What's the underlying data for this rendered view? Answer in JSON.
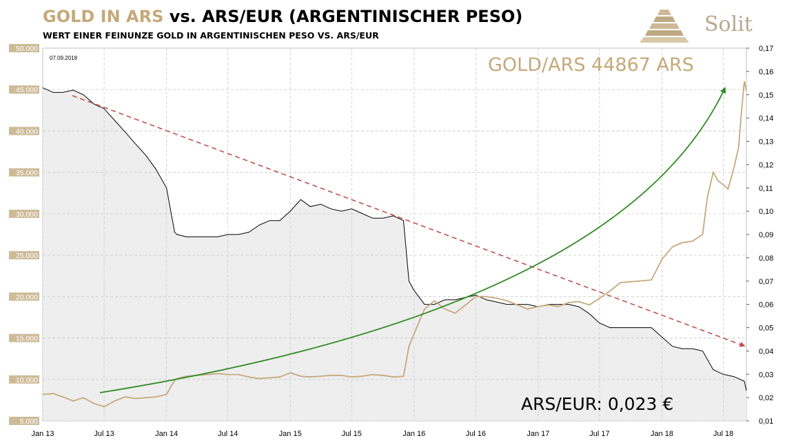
{
  "header": {
    "title_part1": "GOLD IN ARS",
    "title_part2": " vs. ARS/EUR (ARGENTINISCHER PESO)",
    "subtitle": "WERT EINER FEINUNZE GOLD IN ARGENTINISCHEN PESO VS. ARS/EUR",
    "brand": "Solit"
  },
  "colors": {
    "gold": "#c4a97a",
    "gold_axis": "#b49a6a",
    "ars_eur_line": "#000000",
    "ars_eur_fill": "#eeeeee",
    "trend_down": "#c0504d",
    "trend_up": "#2e8b20",
    "grid": "#c8c8c8"
  },
  "chart_data": {
    "type": "line",
    "date_label": "07.09.2018",
    "x_ticks": [
      "Jan 13",
      "Jul 13",
      "Jan 14",
      "Jul 14",
      "Jan 15",
      "Jul 15",
      "Jan 16",
      "Jul 16",
      "Jan 17",
      "Jul 17",
      "Jan 18",
      "Jul 18"
    ],
    "x_tick_dates": [
      "2013-01-01",
      "2013-07-01",
      "2014-01-01",
      "2014-07-01",
      "2015-01-01",
      "2015-07-01",
      "2016-01-01",
      "2016-07-01",
      "2017-01-01",
      "2017-07-01",
      "2018-01-01",
      "2018-07-01"
    ],
    "x_range": [
      "2013-01-01",
      "2018-09-07"
    ],
    "y_left": {
      "label": "Gold in ARS",
      "min": 5000,
      "max": 50000,
      "ticks": [
        "50.000",
        "45.000",
        "40.000",
        "35.000",
        "30.000",
        "25.000",
        "20.000",
        "15.000",
        "10.000",
        "5.000"
      ],
      "tick_values": [
        50000,
        45000,
        40000,
        35000,
        30000,
        25000,
        20000,
        15000,
        10000,
        5000
      ]
    },
    "y_right": {
      "label": "ARS/EUR",
      "min": 0.01,
      "max": 0.17,
      "ticks": [
        "0,17",
        "0,16",
        "0,15",
        "0,14",
        "0,13",
        "0,12",
        "0,11",
        "0,10",
        "0,09",
        "0,08",
        "0,07",
        "0,06",
        "0,05",
        "0,04",
        "0,03",
        "0,02",
        "0,01"
      ],
      "tick_values": [
        0.17,
        0.16,
        0.15,
        0.14,
        0.13,
        0.12,
        0.11,
        0.1,
        0.09,
        0.08,
        0.07,
        0.06,
        0.05,
        0.04,
        0.03,
        0.02,
        0.01
      ]
    },
    "grid": true,
    "series": [
      {
        "name": "GOLD/ARS",
        "axis": "left",
        "color": "#c4a97a",
        "points": [
          [
            "2013-01-01",
            8200
          ],
          [
            "2013-02-01",
            8300
          ],
          [
            "2013-03-01",
            7900
          ],
          [
            "2013-04-01",
            7400
          ],
          [
            "2013-05-01",
            7800
          ],
          [
            "2013-06-01",
            7100
          ],
          [
            "2013-07-01",
            6700
          ],
          [
            "2013-08-01",
            7400
          ],
          [
            "2013-09-01",
            7900
          ],
          [
            "2013-10-01",
            7700
          ],
          [
            "2013-11-01",
            7800
          ],
          [
            "2013-12-01",
            7900
          ],
          [
            "2014-01-01",
            8200
          ],
          [
            "2014-01-25",
            9900
          ],
          [
            "2014-02-01",
            10100
          ],
          [
            "2014-03-01",
            10400
          ],
          [
            "2014-04-01",
            10500
          ],
          [
            "2014-05-01",
            10600
          ],
          [
            "2014-06-01",
            10700
          ],
          [
            "2014-07-01",
            10600
          ],
          [
            "2014-08-01",
            10600
          ],
          [
            "2014-09-01",
            10300
          ],
          [
            "2014-10-01",
            10100
          ],
          [
            "2014-11-01",
            10200
          ],
          [
            "2014-12-01",
            10300
          ],
          [
            "2015-01-01",
            10800
          ],
          [
            "2015-02-01",
            10400
          ],
          [
            "2015-03-01",
            10300
          ],
          [
            "2015-04-01",
            10400
          ],
          [
            "2015-05-01",
            10500
          ],
          [
            "2015-06-01",
            10500
          ],
          [
            "2015-07-01",
            10300
          ],
          [
            "2015-08-01",
            10400
          ],
          [
            "2015-09-01",
            10600
          ],
          [
            "2015-10-01",
            10500
          ],
          [
            "2015-11-01",
            10300
          ],
          [
            "2015-12-01",
            10400
          ],
          [
            "2015-12-17",
            14000
          ],
          [
            "2016-01-01",
            15500
          ],
          [
            "2016-02-01",
            18500
          ],
          [
            "2016-03-01",
            19500
          ],
          [
            "2016-04-01",
            18500
          ],
          [
            "2016-05-01",
            18000
          ],
          [
            "2016-06-01",
            19000
          ],
          [
            "2016-07-01",
            20000
          ],
          [
            "2016-08-01",
            20000
          ],
          [
            "2016-09-01",
            19800
          ],
          [
            "2016-10-01",
            19500
          ],
          [
            "2016-11-01",
            19000
          ],
          [
            "2016-12-01",
            18500
          ],
          [
            "2017-01-01",
            18800
          ],
          [
            "2017-02-01",
            19000
          ],
          [
            "2017-03-01",
            18800
          ],
          [
            "2017-04-01",
            19300
          ],
          [
            "2017-05-01",
            19400
          ],
          [
            "2017-06-01",
            19000
          ],
          [
            "2017-07-01",
            19800
          ],
          [
            "2017-08-01",
            20700
          ],
          [
            "2017-09-01",
            21700
          ],
          [
            "2017-10-01",
            21800
          ],
          [
            "2017-11-01",
            21900
          ],
          [
            "2017-12-01",
            22000
          ],
          [
            "2018-01-01",
            24500
          ],
          [
            "2018-02-01",
            26000
          ],
          [
            "2018-03-01",
            26500
          ],
          [
            "2018-04-01",
            26700
          ],
          [
            "2018-05-01",
            27500
          ],
          [
            "2018-05-15",
            32000
          ],
          [
            "2018-06-01",
            35000
          ],
          [
            "2018-06-15",
            34000
          ],
          [
            "2018-07-01",
            33500
          ],
          [
            "2018-07-15",
            33000
          ],
          [
            "2018-08-01",
            35500
          ],
          [
            "2018-08-15",
            38000
          ],
          [
            "2018-08-25",
            43000
          ],
          [
            "2018-09-01",
            46000
          ],
          [
            "2018-09-07",
            44867
          ]
        ]
      },
      {
        "name": "ARS/EUR",
        "axis": "right",
        "color": "#000000",
        "points": [
          [
            "2013-01-01",
            0.153
          ],
          [
            "2013-02-01",
            0.151
          ],
          [
            "2013-03-01",
            0.151
          ],
          [
            "2013-04-01",
            0.152
          ],
          [
            "2013-05-01",
            0.15
          ],
          [
            "2013-06-01",
            0.146
          ],
          [
            "2013-07-01",
            0.144
          ],
          [
            "2013-08-01",
            0.139
          ],
          [
            "2013-09-01",
            0.134
          ],
          [
            "2013-10-01",
            0.129
          ],
          [
            "2013-11-01",
            0.124
          ],
          [
            "2013-12-01",
            0.118
          ],
          [
            "2014-01-01",
            0.11
          ],
          [
            "2014-01-25",
            0.091
          ],
          [
            "2014-02-01",
            0.09
          ],
          [
            "2014-03-01",
            0.089
          ],
          [
            "2014-04-01",
            0.089
          ],
          [
            "2014-05-01",
            0.089
          ],
          [
            "2014-06-01",
            0.089
          ],
          [
            "2014-07-01",
            0.09
          ],
          [
            "2014-08-01",
            0.09
          ],
          [
            "2014-09-01",
            0.091
          ],
          [
            "2014-10-01",
            0.094
          ],
          [
            "2014-11-01",
            0.096
          ],
          [
            "2014-12-01",
            0.096
          ],
          [
            "2015-01-01",
            0.1
          ],
          [
            "2015-02-01",
            0.105
          ],
          [
            "2015-03-01",
            0.102
          ],
          [
            "2015-04-01",
            0.103
          ],
          [
            "2015-05-01",
            0.101
          ],
          [
            "2015-06-01",
            0.1
          ],
          [
            "2015-07-01",
            0.101
          ],
          [
            "2015-08-01",
            0.099
          ],
          [
            "2015-09-01",
            0.097
          ],
          [
            "2015-10-01",
            0.097
          ],
          [
            "2015-11-01",
            0.098
          ],
          [
            "2015-12-01",
            0.096
          ],
          [
            "2015-12-17",
            0.07
          ],
          [
            "2016-01-01",
            0.066
          ],
          [
            "2016-02-01",
            0.06
          ],
          [
            "2016-03-01",
            0.06
          ],
          [
            "2016-04-01",
            0.062
          ],
          [
            "2016-05-01",
            0.062
          ],
          [
            "2016-06-01",
            0.063
          ],
          [
            "2016-07-01",
            0.064
          ],
          [
            "2016-08-01",
            0.062
          ],
          [
            "2016-09-01",
            0.061
          ],
          [
            "2016-10-01",
            0.06
          ],
          [
            "2016-11-01",
            0.06
          ],
          [
            "2016-12-01",
            0.06
          ],
          [
            "2017-01-01",
            0.059
          ],
          [
            "2017-02-01",
            0.06
          ],
          [
            "2017-03-01",
            0.06
          ],
          [
            "2017-04-01",
            0.06
          ],
          [
            "2017-05-01",
            0.059
          ],
          [
            "2017-06-01",
            0.056
          ],
          [
            "2017-07-01",
            0.052
          ],
          [
            "2017-08-01",
            0.05
          ],
          [
            "2017-09-01",
            0.05
          ],
          [
            "2017-10-01",
            0.05
          ],
          [
            "2017-11-01",
            0.05
          ],
          [
            "2017-12-01",
            0.05
          ],
          [
            "2018-01-01",
            0.046
          ],
          [
            "2018-02-01",
            0.042
          ],
          [
            "2018-03-01",
            0.041
          ],
          [
            "2018-04-01",
            0.041
          ],
          [
            "2018-05-01",
            0.04
          ],
          [
            "2018-06-01",
            0.032
          ],
          [
            "2018-07-01",
            0.03
          ],
          [
            "2018-08-01",
            0.029
          ],
          [
            "2018-09-01",
            0.027
          ],
          [
            "2018-09-07",
            0.023
          ]
        ]
      }
    ],
    "annotations": {
      "gold_label": "GOLD/ARS 44867 ARS",
      "ars_label": "ARS/EUR: 0,023 €"
    }
  }
}
